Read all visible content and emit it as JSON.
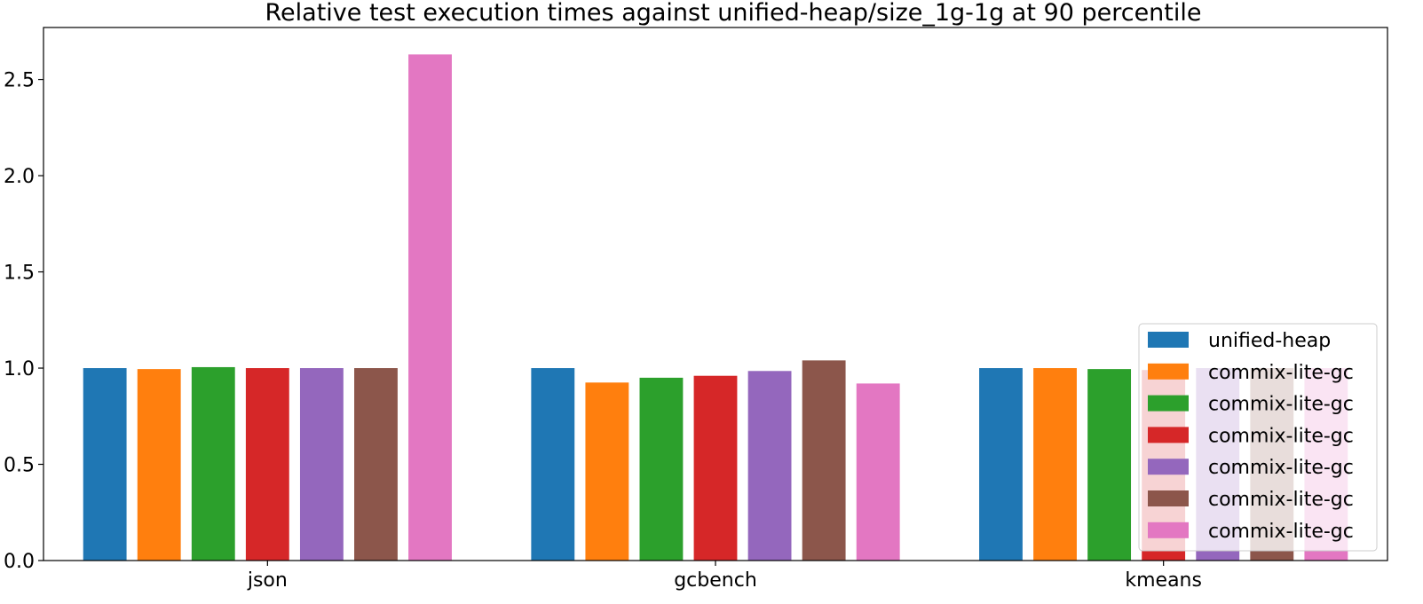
{
  "chart_data": {
    "type": "bar",
    "title": "Relative test execution times against unified-heap/size_1g-1g at 90 percentile",
    "xlabel": "",
    "ylabel": "",
    "categories": [
      "json",
      "gcbench",
      "kmeans"
    ],
    "ylim": [
      0,
      2.77
    ],
    "yticks": [
      "0.0",
      "0.5",
      "1.0",
      "1.5",
      "2.0",
      "2.5"
    ],
    "grid": false,
    "legend_position": "lower-right",
    "series": [
      {
        "name": "unified-heap",
        "color": "#1f77b4",
        "values": [
          1.0,
          1.0,
          1.0
        ]
      },
      {
        "name": "commix-lite-gc",
        "color": "#ff7f0e",
        "values": [
          0.995,
          0.925,
          1.0
        ]
      },
      {
        "name": "commix-lite-gc",
        "color": "#2ca02c",
        "values": [
          1.005,
          0.95,
          0.995
        ]
      },
      {
        "name": "commix-lite-gc",
        "color": "#d62728",
        "values": [
          1.0,
          0.96,
          0.99
        ]
      },
      {
        "name": "commix-lite-gc",
        "color": "#9467bd",
        "values": [
          1.0,
          0.985,
          1.0
        ]
      },
      {
        "name": "commix-lite-gc",
        "color": "#8c564b",
        "values": [
          1.0,
          1.04,
          1.0
        ]
      },
      {
        "name": "commix-lite-gc",
        "color": "#e377c2",
        "values": [
          2.63,
          0.92,
          1.0
        ]
      }
    ]
  }
}
